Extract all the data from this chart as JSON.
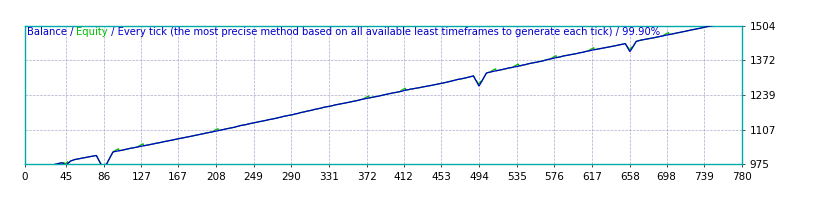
{
  "bg_color": "#FFFFFF",
  "plot_bg_color": "#FFFFFF",
  "border_color": "#00AAAA",
  "grid_color": "#8888BB",
  "line_color": "#0000CC",
  "equity_color": "#00BB00",
  "x_ticks": [
    0,
    45,
    86,
    127,
    167,
    208,
    249,
    290,
    331,
    372,
    412,
    453,
    494,
    535,
    576,
    617,
    658,
    698,
    739,
    780
  ],
  "y_ticks": [
    975,
    1107,
    1239,
    1372,
    1504
  ],
  "x_min": 0,
  "x_max": 780,
  "y_min": 975,
  "y_max": 1504,
  "title_fontsize": 7.2,
  "tick_fontsize": 7.5,
  "title_parts": [
    {
      "text": "Balance",
      "color": "#0000CC"
    },
    {
      "text": " / ",
      "color": "#0000CC"
    },
    {
      "text": "Equity",
      "color": "#00BB00"
    },
    {
      "text": " / Every tick (the most precise method based on all available least timeframes to generate each tick) / 99.90%",
      "color": "#0000CC"
    }
  ]
}
